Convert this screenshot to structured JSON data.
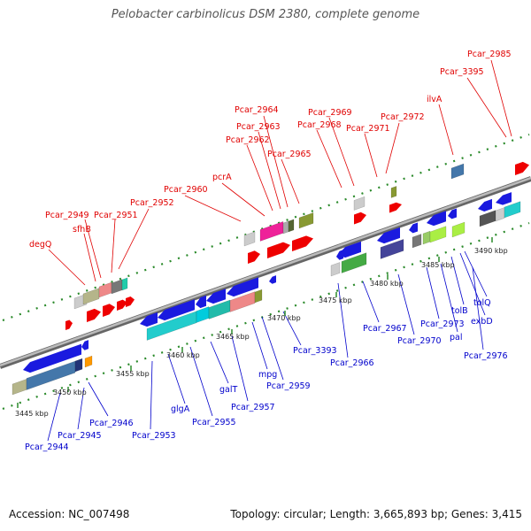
{
  "title": "Pelobacter carbinolicus DSM 2380, complete genome",
  "footer": {
    "accession": "Accession: NC_007498",
    "topology": "Topology: circular; Length: 3,665,893 bp; Genes: 3,415"
  },
  "colors": {
    "upper_label": "#e00000",
    "lower_label": "#0000cc",
    "backbone": "#999999",
    "tick": "#2a8a2a"
  },
  "upper_genes": [
    "degQ",
    "sfhB",
    "Pcar_2949",
    "Pcar_2951",
    "Pcar_2952",
    "Pcar_2960",
    "pcrA",
    "Pcar_2962",
    "Pcar_2963",
    "Pcar_2964",
    "Pcar_2965",
    "Pcar_2968",
    "Pcar_2969",
    "Pcar_2971",
    "Pcar_2972",
    "ilvA",
    "Pcar_3395",
    "Pcar_2985"
  ],
  "lower_genes": [
    "Pcar_2944",
    "Pcar_2945",
    "Pcar_2946",
    "Pcar_2953",
    "glgA",
    "Pcar_2955",
    "galT",
    "Pcar_2957",
    "mpg",
    "Pcar_2959",
    "Pcar_3393",
    "Pcar_2966",
    "Pcar_2967",
    "Pcar_2970",
    "Pcar_2973",
    "pal",
    "tolB",
    "exbD",
    "tolQ",
    "Pcar_2976"
  ],
  "kbp_labels": [
    "3445 kbp",
    "3450 kbp",
    "3455 kbp",
    "3460 kbp",
    "3465 kbp",
    "3470 kbp",
    "3475 kbp",
    "3480 kbp",
    "3485 kbp",
    "3490 kbp"
  ]
}
